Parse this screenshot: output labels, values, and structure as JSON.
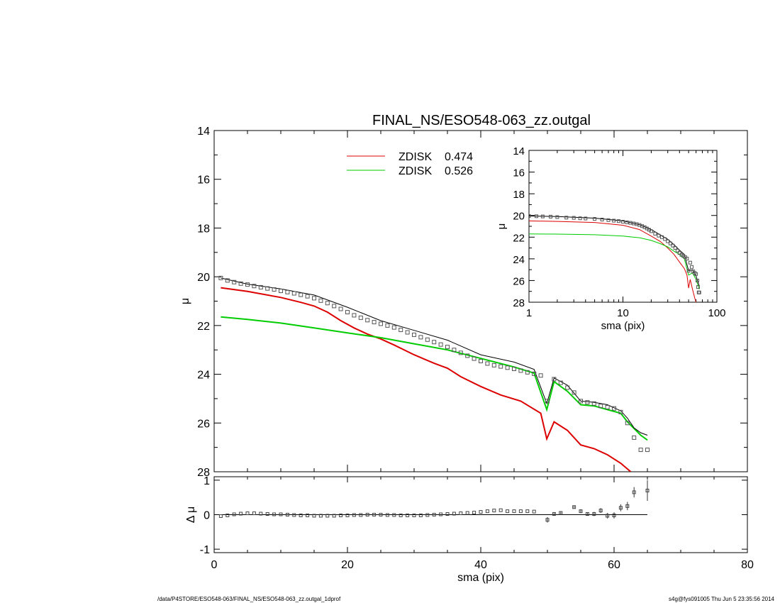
{
  "footer": {
    "path": "/data/P4STORE/ESO548-063/FINAL_NS/ESO548-063_zz.outgal_1dprof",
    "stamp": "s4g@fys091005  Thu Jun  5 23:35:56 2014"
  },
  "colors": {
    "disk1": "#dd0000",
    "disk2": "#00cc00",
    "model": "#000000",
    "data": "#555555"
  },
  "chart_data": [
    {
      "id": "main",
      "type": "line",
      "title": "FINAL_NS/ESO548-063_zz.outgal",
      "xlabel": "",
      "ylabel": "μ",
      "xlim": [
        0,
        80
      ],
      "ylim": [
        28,
        14
      ],
      "y_inverted": true,
      "x_ticks": [
        0,
        20,
        40,
        60,
        80
      ],
      "y_ticks": [
        14,
        16,
        18,
        20,
        22,
        24,
        26,
        28
      ],
      "legend": [
        {
          "label": "ZDISK",
          "value": "0.474",
          "color": "#dd0000"
        },
        {
          "label": "ZDISK",
          "value": "0.526",
          "color": "#00cc00"
        }
      ],
      "series": [
        {
          "name": "ZDISK 0.474",
          "color": "#dd0000",
          "x": [
            1,
            5,
            10,
            13,
            15,
            17,
            19,
            21,
            23,
            25,
            27,
            30,
            33,
            35,
            37,
            40,
            43,
            46,
            49,
            49.9,
            51,
            53,
            55,
            57,
            59,
            61,
            62.5
          ],
          "y": [
            20.45,
            20.6,
            20.85,
            21.05,
            21.2,
            21.45,
            21.8,
            22.1,
            22.35,
            22.55,
            22.8,
            23.2,
            23.55,
            23.75,
            24.1,
            24.5,
            24.85,
            25.1,
            25.6,
            26.65,
            25.95,
            26.3,
            26.9,
            27.05,
            27.3,
            27.65,
            28.0
          ]
        },
        {
          "name": "ZDISK 0.526",
          "color": "#00cc00",
          "x": [
            1,
            5,
            10,
            15,
            20,
            25,
            30,
            35,
            40,
            45,
            48,
            49.9,
            51,
            53,
            55,
            57,
            59,
            61,
            62,
            64,
            65
          ],
          "y": [
            21.65,
            21.75,
            21.9,
            22.1,
            22.3,
            22.5,
            22.75,
            23.0,
            23.35,
            23.7,
            23.95,
            25.45,
            24.3,
            24.7,
            25.25,
            25.3,
            25.45,
            25.6,
            25.95,
            26.5,
            26.7
          ]
        },
        {
          "name": "model",
          "color": "#000000",
          "x": [
            1,
            5,
            10,
            15,
            20,
            25,
            30,
            35,
            40,
            45,
            48,
            49.9,
            51,
            53,
            55,
            57,
            59,
            61,
            62,
            63,
            64,
            65
          ],
          "y": [
            20.05,
            20.3,
            20.5,
            20.75,
            21.25,
            21.8,
            22.2,
            22.6,
            23.2,
            23.5,
            23.8,
            25.2,
            24.15,
            24.45,
            25.1,
            25.15,
            25.25,
            25.5,
            25.8,
            26.2,
            26.4,
            26.5
          ]
        },
        {
          "name": "data",
          "color": "#555555",
          "marker": "square",
          "x": [
            1,
            2,
            3,
            4,
            5,
            6,
            7,
            8,
            9,
            10,
            11,
            12,
            13,
            14,
            15,
            16,
            17,
            18,
            19,
            20,
            21,
            22,
            23,
            24,
            25,
            26,
            27,
            28,
            29,
            30,
            31,
            32,
            33,
            34,
            35,
            36,
            37,
            38,
            39,
            40,
            41,
            42,
            43,
            44,
            45,
            46,
            47,
            48,
            49,
            50,
            51,
            52,
            53,
            54,
            55,
            56,
            57,
            58,
            59,
            60,
            61,
            62,
            63,
            64,
            65
          ],
          "y": [
            20.05,
            20.15,
            20.22,
            20.28,
            20.32,
            20.38,
            20.43,
            20.48,
            20.52,
            20.58,
            20.63,
            20.68,
            20.74,
            20.8,
            20.88,
            20.98,
            21.08,
            21.2,
            21.32,
            21.45,
            21.58,
            21.68,
            21.78,
            21.86,
            21.93,
            22.0,
            22.08,
            22.18,
            22.28,
            22.38,
            22.48,
            22.58,
            22.68,
            22.78,
            22.88,
            23.0,
            23.12,
            23.24,
            23.36,
            23.46,
            23.56,
            23.63,
            23.68,
            23.73,
            23.78,
            23.85,
            23.92,
            23.98,
            24.05,
            25.1,
            24.2,
            24.35,
            24.55,
            24.75,
            25.1,
            25.15,
            25.2,
            25.3,
            25.35,
            25.4,
            25.55,
            26.0,
            26.6,
            27.1,
            27.1
          ]
        }
      ]
    },
    {
      "id": "residual",
      "type": "scatter",
      "xlabel": "sma (pix)",
      "ylabel": "Δ μ",
      "xlim": [
        0,
        80
      ],
      "ylim": [
        -1.1,
        1.1
      ],
      "x_ticks": [
        0,
        20,
        40,
        60,
        80
      ],
      "y_ticks": [
        -1,
        0,
        1
      ],
      "series": [
        {
          "name": "residual",
          "marker": "square",
          "x": [
            1,
            2,
            3,
            4,
            5,
            6,
            7,
            8,
            9,
            10,
            11,
            12,
            13,
            14,
            15,
            16,
            17,
            18,
            19,
            20,
            21,
            22,
            23,
            24,
            25,
            26,
            27,
            28,
            29,
            30,
            31,
            32,
            33,
            34,
            35,
            36,
            37,
            38,
            39,
            40,
            41,
            42,
            43,
            44,
            45,
            46,
            47,
            48,
            50,
            51,
            52,
            54,
            55,
            56,
            57,
            58,
            59,
            60,
            61,
            62,
            63,
            65
          ],
          "y": [
            -0.04,
            -0.02,
            0.01,
            0.03,
            0.04,
            0.04,
            0.03,
            0.02,
            0.01,
            0.01,
            0.0,
            -0.01,
            -0.02,
            -0.02,
            -0.03,
            -0.03,
            -0.03,
            -0.03,
            -0.02,
            -0.02,
            -0.01,
            -0.01,
            0.0,
            0.0,
            0.0,
            -0.01,
            -0.01,
            -0.02,
            -0.02,
            -0.02,
            -0.02,
            -0.01,
            0.0,
            0.01,
            0.02,
            0.03,
            0.04,
            0.05,
            0.06,
            0.08,
            0.1,
            0.12,
            0.13,
            0.1,
            0.1,
            0.1,
            0.1,
            0.09,
            -0.15,
            0.02,
            0.05,
            0.22,
            0.1,
            0.02,
            0.02,
            0.12,
            -0.03,
            -0.02,
            0.2,
            0.25,
            0.65,
            0.7
          ],
          "err": [
            0,
            0,
            0,
            0,
            0,
            0,
            0,
            0,
            0,
            0,
            0,
            0,
            0,
            0,
            0,
            0,
            0,
            0,
            0,
            0,
            0,
            0,
            0,
            0,
            0,
            0,
            0,
            0,
            0,
            0,
            0,
            0,
            0,
            0,
            0,
            0,
            0,
            0,
            0,
            0,
            0,
            0,
            0,
            0,
            0,
            0,
            0,
            0,
            0.08,
            0.03,
            0.03,
            0.04,
            0.05,
            0.05,
            0.06,
            0.07,
            0.08,
            0.09,
            0.1,
            0.12,
            0.15,
            0.3
          ]
        }
      ]
    },
    {
      "id": "inset",
      "type": "line",
      "xlabel": "sma (pix)",
      "ylabel": "μ",
      "x_log": true,
      "xlim": [
        1,
        100
      ],
      "ylim": [
        28,
        14
      ],
      "y_inverted": true,
      "x_ticks": [
        1,
        10,
        100
      ],
      "y_ticks": [
        14,
        16,
        18,
        20,
        22,
        24,
        26,
        28
      ],
      "series": [
        {
          "name": "ZDISK 0.474",
          "color": "#dd0000",
          "x": [
            1,
            2,
            5,
            10,
            15,
            20,
            25,
            30,
            35,
            40,
            45,
            48,
            50,
            52,
            55,
            58,
            60
          ],
          "y": [
            20.5,
            20.55,
            20.65,
            20.9,
            21.3,
            21.9,
            22.4,
            23.0,
            23.6,
            24.3,
            24.9,
            25.5,
            26.7,
            25.9,
            26.8,
            27.6,
            28.0
          ]
        },
        {
          "name": "ZDISK 0.526",
          "color": "#00cc00",
          "x": [
            1,
            2,
            5,
            10,
            15,
            20,
            25,
            30,
            35,
            40,
            45,
            50,
            55,
            60,
            65
          ],
          "y": [
            21.7,
            21.72,
            21.78,
            21.9,
            22.05,
            22.3,
            22.6,
            22.9,
            23.3,
            23.6,
            24.0,
            25.5,
            25.3,
            25.9,
            26.8
          ]
        },
        {
          "name": "model",
          "color": "#000000",
          "x": [
            1,
            2,
            5,
            10,
            15,
            20,
            25,
            30,
            35,
            40,
            45,
            50,
            55,
            60,
            65
          ],
          "y": [
            20.05,
            20.1,
            20.25,
            20.5,
            20.85,
            21.3,
            21.8,
            22.2,
            22.7,
            23.2,
            23.6,
            25.1,
            25.0,
            25.6,
            26.5
          ]
        },
        {
          "name": "data",
          "color": "#555555",
          "marker": "square",
          "x": [
            1,
            1.2,
            1.4,
            1.7,
            2,
            2.5,
            3,
            3.5,
            4,
            5,
            6,
            7,
            8,
            9,
            10,
            11,
            12,
            13,
            14,
            15,
            16,
            17,
            18,
            19,
            20,
            22,
            24,
            26,
            28,
            30,
            32,
            34,
            36,
            38,
            40,
            42,
            44,
            46,
            48,
            50,
            52,
            54,
            56,
            58,
            60,
            62,
            63,
            64,
            65
          ],
          "y": [
            20.05,
            20.07,
            20.09,
            20.11,
            20.15,
            20.2,
            20.22,
            20.26,
            20.28,
            20.32,
            20.38,
            20.43,
            20.48,
            20.52,
            20.58,
            20.63,
            20.68,
            20.74,
            20.8,
            20.88,
            20.98,
            21.08,
            21.2,
            21.32,
            21.45,
            21.68,
            21.86,
            22.0,
            22.18,
            22.38,
            22.58,
            22.78,
            23.0,
            23.24,
            23.46,
            23.63,
            23.73,
            23.85,
            23.98,
            25.1,
            24.35,
            24.75,
            25.15,
            25.3,
            25.4,
            26.0,
            26.6,
            27.1,
            27.1
          ]
        }
      ]
    }
  ]
}
